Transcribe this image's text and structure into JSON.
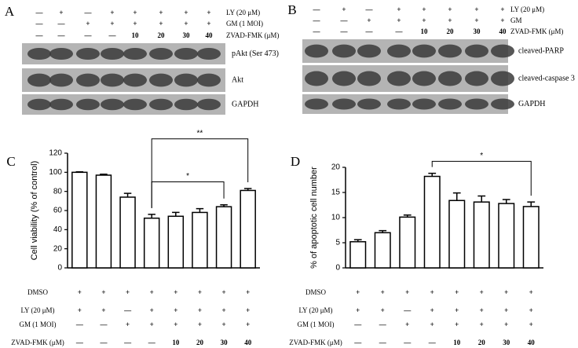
{
  "blots": [
    {
      "label": "A",
      "treatments": [
        {
          "name": "LY (20 μM)",
          "lanes": [
            "—",
            "+",
            "—",
            "+",
            "+",
            "+",
            "+",
            "+"
          ]
        },
        {
          "name": "GM (1 MOI)",
          "lanes": [
            "—",
            "—",
            "+",
            "+",
            "+",
            "+",
            "+",
            "+"
          ]
        },
        {
          "name": "ZVAD-FMK (μM)",
          "lanes": [
            "—",
            "—",
            "—",
            "—",
            "10",
            "20",
            "30",
            "40"
          ]
        }
      ],
      "bands": [
        "pAkt (Ser 473)",
        "Akt",
        "GAPDH"
      ]
    },
    {
      "label": "B",
      "treatments": [
        {
          "name": "LY (20 μM)",
          "lanes": [
            "—",
            "+",
            "—",
            "+",
            "+",
            "+",
            "+",
            "+"
          ]
        },
        {
          "name": "GM",
          "lanes": [
            "—",
            "—",
            "+",
            "+",
            "+",
            "+",
            "+",
            "+"
          ]
        },
        {
          "name": "ZVAD-FMK (μM)",
          "lanes": [
            "—",
            "—",
            "—",
            "—",
            "10",
            "20",
            "30",
            "40"
          ]
        }
      ],
      "bands": [
        "cleaved-PARP",
        "cleaved-caspase 3",
        "GAPDH"
      ]
    }
  ],
  "chart_data": [
    {
      "type": "bar",
      "label": "C",
      "ylabel": "Cell viability (% of control)",
      "ylim": [
        0,
        120
      ],
      "yticks": [
        0,
        20,
        40,
        60,
        80,
        100,
        120
      ],
      "values": [
        100,
        97,
        74,
        52,
        54,
        58,
        64,
        81
      ],
      "errors": [
        0.5,
        1,
        4,
        4,
        4,
        4,
        2,
        2
      ],
      "color": "#ffffff",
      "edgecolor": "#000000",
      "significance": [
        {
          "from": 3,
          "to": 7,
          "y": 135,
          "label": "**"
        },
        {
          "from": 3,
          "to": 6,
          "y": 90,
          "label": "*"
        }
      ],
      "conditions": [
        {
          "name": "DMSO",
          "lanes": [
            "+",
            "+",
            "+",
            "+",
            "+",
            "+",
            "+",
            "+"
          ]
        },
        {
          "name": "LY (20 μM)",
          "lanes": [
            "+",
            "+",
            "—",
            "+",
            "+",
            "+",
            "+",
            "+"
          ]
        },
        {
          "name": "GM (1 MOI)",
          "lanes": [
            "—",
            "—",
            "+",
            "+",
            "+",
            "+",
            "+",
            "+"
          ]
        },
        {
          "name": "ZVAD-FMK (μM)",
          "lanes": [
            "—",
            "—",
            "—",
            "—",
            "10",
            "20",
            "30",
            "40"
          ]
        }
      ]
    },
    {
      "type": "bar",
      "label": "D",
      "ylabel": "% of apoptotic cell number",
      "ylim": [
        0,
        20
      ],
      "yticks": [
        0,
        5,
        10,
        15,
        20
      ],
      "values": [
        5.2,
        7,
        10.1,
        18.2,
        13.4,
        13.1,
        12.8,
        12.2
      ],
      "errors": [
        0.4,
        0.4,
        0.4,
        0.6,
        1.5,
        1.2,
        0.8,
        0.9
      ],
      "color": "#ffffff",
      "edgecolor": "#000000",
      "significance": [
        {
          "from": 3,
          "to": 7,
          "y": 21.2,
          "label": "*"
        }
      ],
      "conditions": [
        {
          "name": "DMSO",
          "lanes": [
            "+",
            "+",
            "+",
            "+",
            "+",
            "+",
            "+",
            "+"
          ]
        },
        {
          "name": "LY (20 μM)",
          "lanes": [
            "+",
            "+",
            "—",
            "+",
            "+",
            "+",
            "+",
            "+"
          ]
        },
        {
          "name": "GM (1 MOI)",
          "lanes": [
            "—",
            "—",
            "+",
            "+",
            "+",
            "+",
            "+",
            "+"
          ]
        },
        {
          "name": "ZVAD-FMK (μM)",
          "lanes": [
            "—",
            "—",
            "—",
            "—",
            "10",
            "20",
            "30",
            "40"
          ]
        }
      ]
    }
  ]
}
